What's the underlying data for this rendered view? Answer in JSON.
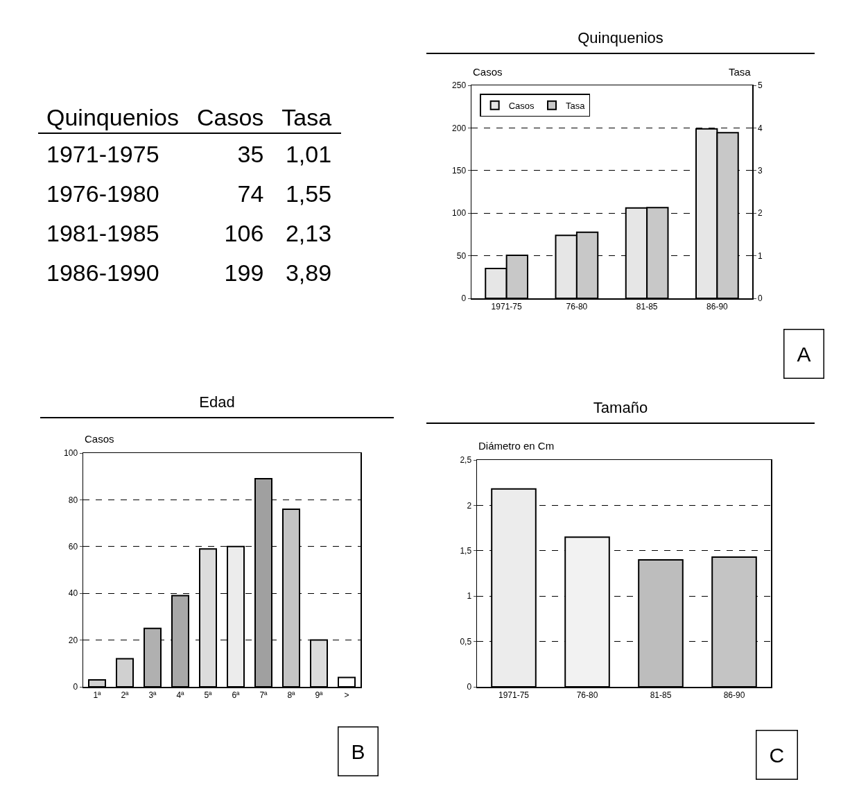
{
  "chart_data": [
    {
      "type": "other",
      "xlabel": "Quinquenios",
      "categories": [
        "1971-1975",
        "1976-1980",
        "1981-1985",
        "1986-1990"
      ],
      "series": [
        {
          "name": "Casos",
          "values": [
            35,
            74,
            106,
            199
          ],
          "value_labels": [
            "35",
            "74",
            "106",
            "199"
          ]
        },
        {
          "name": "Tasa",
          "values": [
            1.01,
            1.55,
            2.13,
            3.89
          ],
          "value_labels": [
            "1,01",
            "1,55",
            "2,13",
            "3,89"
          ]
        }
      ]
    },
    {
      "type": "bar",
      "title": "Quinquenios",
      "ylabel": "Casos",
      "y2label": "Tasa",
      "categories": [
        "1971-75",
        "76-80",
        "81-85",
        "86-90"
      ],
      "series": [
        {
          "name": "Casos",
          "color": "#e6e6e6",
          "values": [
            35,
            74,
            106,
            199
          ]
        },
        {
          "name": "Tasa",
          "color": "#c8c8c8",
          "axis": "y2",
          "values": [
            1.01,
            1.55,
            2.13,
            3.89
          ]
        }
      ],
      "ylim": [
        0,
        250
      ],
      "yticks": [
        0,
        50,
        100,
        150,
        200,
        250
      ],
      "y2lim": [
        0,
        5
      ],
      "y2ticks": [
        0,
        1,
        2,
        3,
        4,
        5
      ],
      "grid": "y",
      "legend": "top left",
      "annotations": [
        "A"
      ]
    },
    {
      "type": "bar",
      "title": "Edad",
      "ylabel": "Casos",
      "categories": [
        "1ª",
        "2ª",
        "3ª",
        "4ª",
        "5ª",
        "6ª",
        "7ª",
        "8ª",
        "9ª",
        ">"
      ],
      "values": [
        3,
        12,
        25,
        39,
        59,
        60,
        89,
        76,
        20,
        4
      ],
      "colors": [
        "#d0d0d0",
        "#d0d0d0",
        "#b0b0b0",
        "#a8a8a8",
        "#dcdcdc",
        "#ececec",
        "#a0a0a0",
        "#c4c4c4",
        "#dcdcdc",
        "#ffffff"
      ],
      "ylim": [
        0,
        100
      ],
      "yticks": [
        0,
        20,
        40,
        60,
        80,
        100
      ],
      "grid": "y",
      "annotations": [
        "B"
      ]
    },
    {
      "type": "bar",
      "title": "Tamaño",
      "ylabel": "Diámetro en Cm",
      "categories": [
        "1971-75",
        "76-80",
        "81-85",
        "86-90"
      ],
      "values": [
        2.18,
        1.65,
        1.4,
        1.43
      ],
      "colors": [
        "#ececec",
        "#f2f2f2",
        "#bdbdbd",
        "#c4c4c4"
      ],
      "ylim": [
        0,
        2.5
      ],
      "yticks": [
        0,
        {
          "value": 0.5,
          "label": "0,5"
        },
        1,
        {
          "value": 1.5,
          "label": "1,5"
        },
        2,
        {
          "value": 2.5,
          "label": "2,5"
        }
      ],
      "grid": "y",
      "annotations": [
        "C"
      ]
    }
  ]
}
